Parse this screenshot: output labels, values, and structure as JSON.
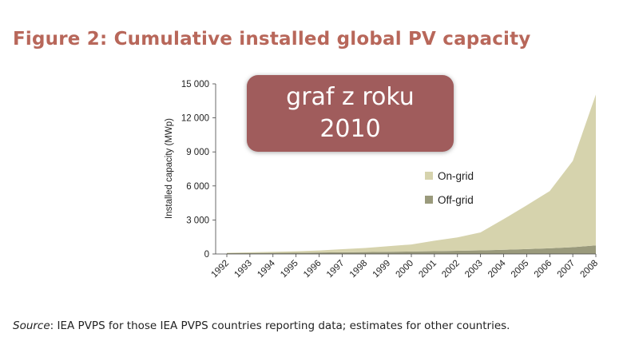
{
  "title": "Figure 2: Cumulative installed global PV capacity",
  "source": {
    "label": "Source",
    "text": ": IEA PVPS for those IEA PVPS countries reporting data; estimates for other countries."
  },
  "stamp": {
    "line1": "graf z roku",
    "line2": "2010",
    "color": "#a05c5c"
  },
  "chart_data": {
    "type": "area",
    "stacked": true,
    "x": [
      "1992",
      "1993",
      "1994",
      "1995",
      "1996",
      "1997",
      "1998",
      "1999",
      "2000",
      "2001",
      "2002",
      "2003",
      "2004",
      "2005",
      "2006",
      "2007",
      "2008"
    ],
    "series": [
      {
        "name": "Off-grid",
        "color": "#9a9a7c",
        "values": [
          80,
          90,
          100,
          110,
          130,
          150,
          170,
          190,
          220,
          250,
          280,
          320,
          370,
          430,
          500,
          600,
          760
        ]
      },
      {
        "name": "On-grid",
        "color": "#d6d3ad",
        "values": [
          30,
          60,
          90,
          130,
          180,
          270,
          360,
          500,
          620,
          920,
          1180,
          1580,
          2700,
          3860,
          5050,
          7600,
          13300
        ]
      }
    ],
    "ylabel": "Installed capacity (MWp)",
    "y_ticks": [
      "0",
      "3 000",
      "6 000",
      "9 000",
      "12 000",
      "15 000"
    ],
    "y_tick_values": [
      0,
      3000,
      6000,
      9000,
      12000,
      15000
    ],
    "ylim": [
      0,
      15000
    ],
    "grid": false,
    "legend_position": "right",
    "legend": [
      "On-grid",
      "Off-grid"
    ]
  }
}
